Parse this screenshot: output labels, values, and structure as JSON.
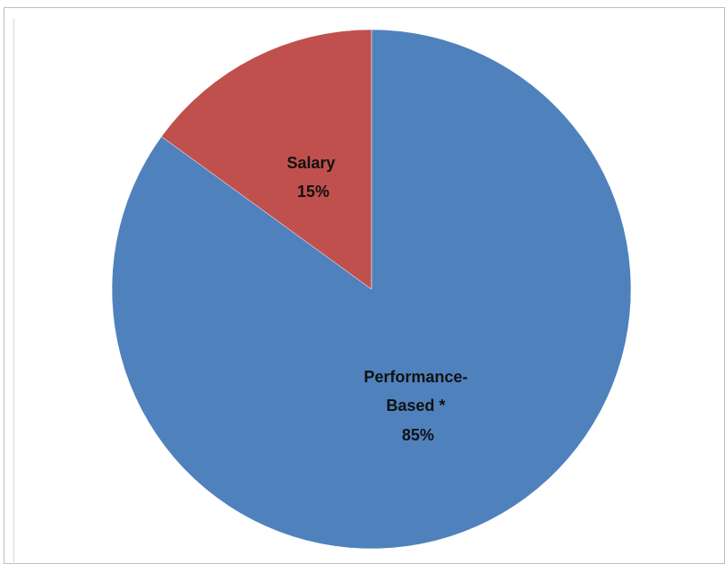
{
  "chart_data": {
    "type": "pie",
    "title": "",
    "start_angle_deg": 0,
    "direction": "clockwise",
    "slices": [
      {
        "label_lines": [
          "Performance-",
          "Based *"
        ],
        "label": "Performance-Based *",
        "value": 85,
        "display": "85%",
        "color": "#4f81bd"
      },
      {
        "label_lines": [
          "Salary"
        ],
        "label": "Salary",
        "value": 15,
        "display": "15%",
        "color": "#c0504d"
      }
    ],
    "legend": "none",
    "grid": false
  }
}
